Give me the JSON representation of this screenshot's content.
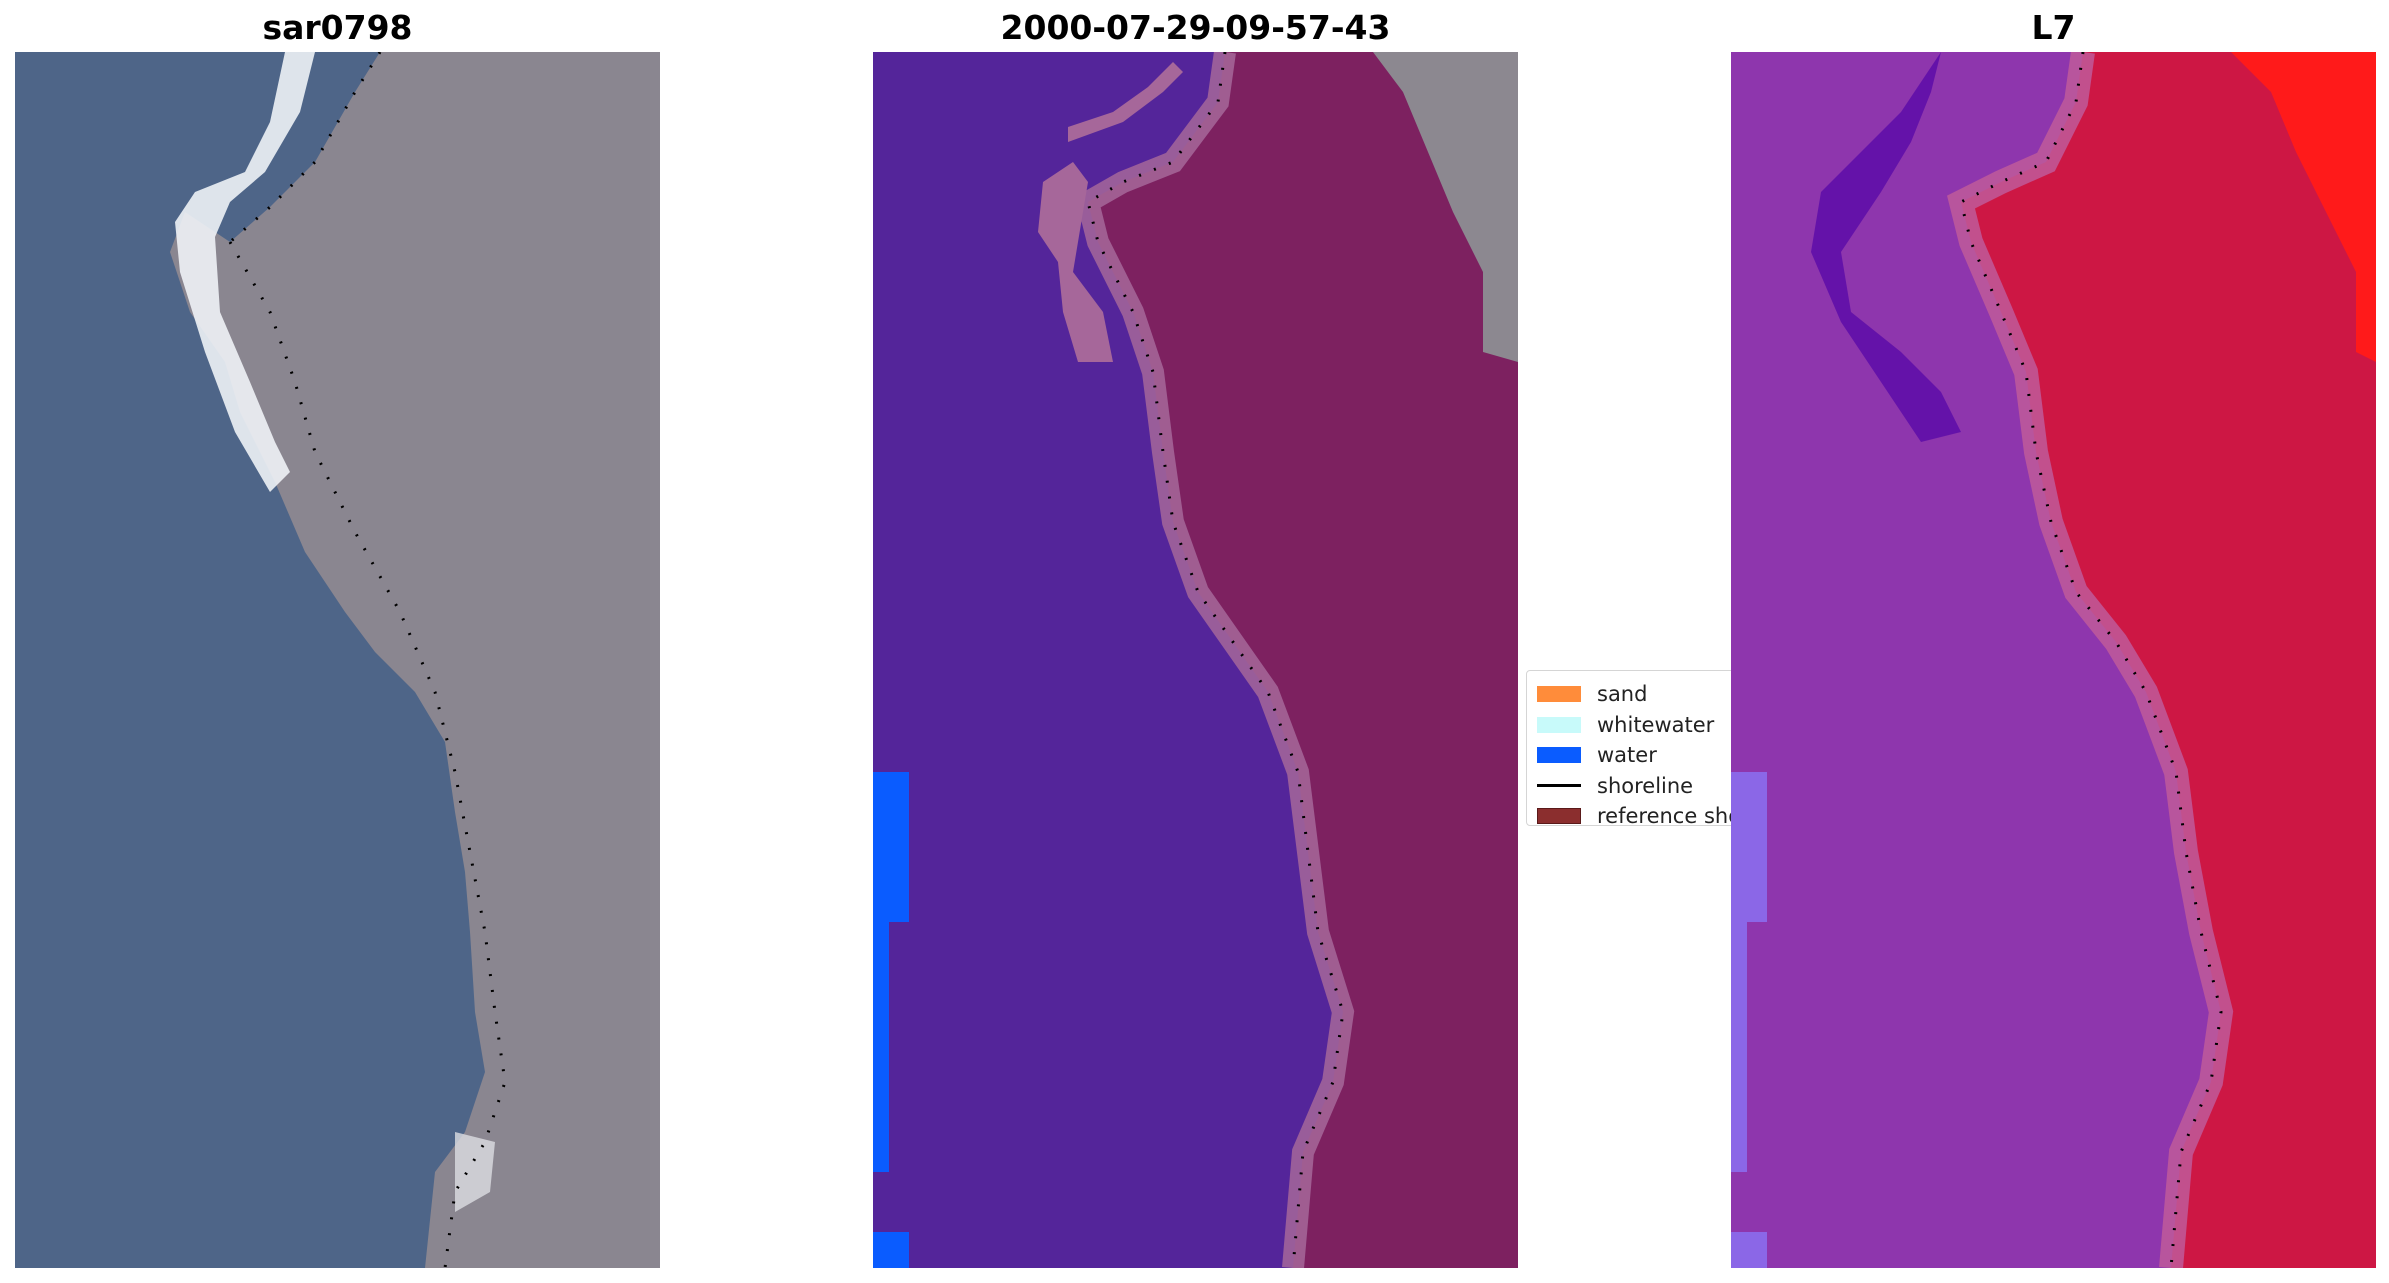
{
  "panels": [
    {
      "id": "rgb",
      "title": "sar0798"
    },
    {
      "id": "classified",
      "title": "2000-07-29-09-57-43"
    },
    {
      "id": "index",
      "title": "L7"
    }
  ],
  "legend": {
    "items": [
      {
        "label": "sand",
        "color": "#ff8c3a",
        "kind": "patch"
      },
      {
        "label": "whitewater",
        "color": "#c8fafa",
        "kind": "patch"
      },
      {
        "label": "water",
        "color": "#0a5cff",
        "kind": "patch"
      },
      {
        "label": "shoreline",
        "color": "#000000",
        "kind": "line"
      },
      {
        "label": "reference shoreline",
        "color": "#8b2e2e",
        "kind": "patch"
      }
    ]
  },
  "colors": {
    "rgb_water": "#4e6588",
    "rgb_land": "#8a8690",
    "rgb_surf": "#eef2f6",
    "class_water": "#54259a",
    "class_land": "#7d2160",
    "class_buffer": "#a6679a",
    "class_bare": "#8c8890",
    "class_water_blue": "#0a5cff",
    "index_water": "#8e36ad",
    "index_land": "#cd1744",
    "index_bright": "#ff1a1a",
    "index_dark": "#5a0aa8",
    "index_buffer": "#c05a9a",
    "shoreline_dots": "#000000"
  }
}
